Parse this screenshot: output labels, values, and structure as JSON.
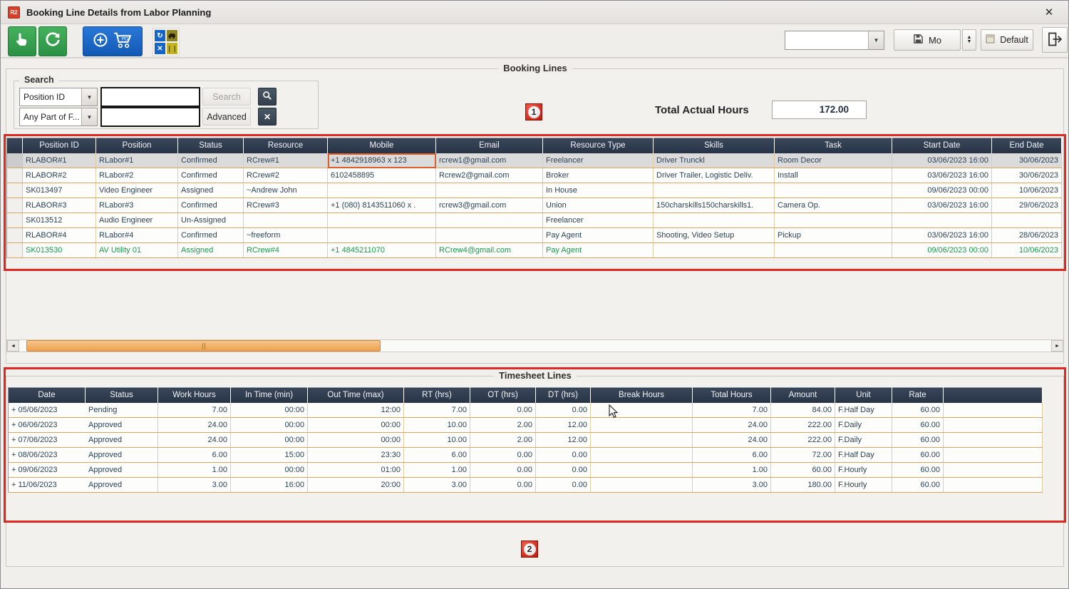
{
  "window": {
    "title": "Booking Line Details from Labor Planning",
    "app_icon_text": "R2"
  },
  "glyphs": {
    "close": "✕",
    "dropdown_arrow": "▼",
    "spinner_up": "▲",
    "spinner_down": "▼",
    "scroll_left": "◄",
    "scroll_right": "►",
    "clear": "✕",
    "excel_x": "✕",
    "pause_bars": "❘❘",
    "sync": "↻"
  },
  "toolbar": {
    "combo_value": "",
    "mo_button_label": "Mo",
    "default_button_label": "Default"
  },
  "booking": {
    "group_label": "Booking Lines",
    "annotation_badge": "1",
    "search": {
      "group_label": "Search",
      "field_combo_value": "Position ID",
      "match_combo_value": "Any Part of F...",
      "input_top": "",
      "input_bottom": "",
      "search_button_label": "Search",
      "advanced_button_label": "Advanced"
    },
    "total_hours_label": "Total Actual Hours",
    "total_hours_value": "172.00",
    "table": {
      "columns": [
        "Position ID",
        "Position",
        "Status",
        "Resource",
        "Mobile",
        "Email",
        "Resource Type",
        "Skills",
        "Task",
        "Start Date",
        "End Date"
      ],
      "rows": [
        {
          "selected": true,
          "outlined_cell": 4,
          "cells": [
            "RLABOR#1",
            "RLabor#1",
            "Confirmed",
            "RCrew#1",
            "+1 4842918963 x 123",
            "rcrew1@gmail.com",
            "Freelancer",
            "Driver Trunckl",
            "Room Decor",
            "03/06/2023 16:00",
            "30/06/2023"
          ]
        },
        {
          "cells": [
            "RLABOR#2",
            "RLabor#2",
            "Confirmed",
            "RCrew#2",
            "6102458895",
            "Rcrew2@gmail.com",
            "Broker",
            "Driver Trailer, Logistic Deliv.",
            "Install",
            "03/06/2023 16:00",
            "30/06/2023"
          ]
        },
        {
          "cells": [
            "SK013497",
            "Video Engineer",
            "Assigned",
            "~Andrew John",
            "",
            "",
            "In House",
            "",
            "",
            "09/06/2023 00:00",
            "10/06/2023"
          ]
        },
        {
          "cells": [
            "RLABOR#3",
            "RLabor#3",
            "Confirmed",
            "RCrew#3",
            "+1 (080) 8143511060 x .",
            "rcrew3@gmail.com",
            "Union",
            "150charskills150charskills1.",
            "Camera Op.",
            "03/06/2023 16:00",
            "29/06/2023"
          ]
        },
        {
          "cells": [
            "SK013512",
            "Audio Engineer",
            "Un-Assigned",
            "",
            "",
            "",
            "Freelancer",
            "",
            "",
            "",
            ""
          ]
        },
        {
          "cells": [
            "RLABOR#4",
            "RLabor#4",
            "Confirmed",
            "~freeform",
            "",
            "",
            "Pay Agent",
            "Shooting, Video Setup",
            "Pickup",
            "03/06/2023 16:00",
            "28/06/2023"
          ]
        },
        {
          "green": true,
          "cells": [
            "SK013530",
            "AV Utility 01",
            "Assigned",
            "RCrew#4",
            "+1 4845211070",
            "RCrew4@gmail.com",
            "Pay Agent",
            "",
            "",
            "09/06/2023 00:00",
            "10/06/2023"
          ]
        }
      ]
    }
  },
  "timesheet": {
    "group_label": "Timesheet Lines",
    "annotation_badge": "2",
    "table": {
      "columns": [
        "Date",
        "Status",
        "Work Hours",
        "In Time (min)",
        "Out Time (max)",
        "RT (hrs)",
        "OT (hrs)",
        "DT (hrs)",
        "Break Hours",
        "Total Hours",
        "Amount",
        "Unit",
        "Rate"
      ],
      "rows": [
        {
          "cells": [
            "+ 05/06/2023",
            "Pending",
            "7.00",
            "00:00",
            "12:00",
            "7.00",
            "0.00",
            "0.00",
            "",
            "7.00",
            "84.00",
            "F.Half Day",
            "60.00"
          ]
        },
        {
          "cells": [
            "+ 06/06/2023",
            "Approved",
            "24.00",
            "00:00",
            "00:00",
            "10.00",
            "2.00",
            "12.00",
            "",
            "24.00",
            "222.00",
            "F.Daily",
            "60.00"
          ]
        },
        {
          "cells": [
            "+ 07/06/2023",
            "Approved",
            "24.00",
            "00:00",
            "00:00",
            "10.00",
            "2.00",
            "12.00",
            "",
            "24.00",
            "222.00",
            "F.Daily",
            "60.00"
          ]
        },
        {
          "cells": [
            "+ 08/06/2023",
            "Approved",
            "6.00",
            "15:00",
            "23:30",
            "6.00",
            "0.00",
            "0.00",
            "",
            "6.00",
            "72.00",
            "F.Half Day",
            "60.00"
          ]
        },
        {
          "cells": [
            "+ 09/06/2023",
            "Approved",
            "1.00",
            "00:00",
            "01:00",
            "1.00",
            "0.00",
            "0.00",
            "",
            "1.00",
            "60.00",
            "F.Hourly",
            "60.00"
          ]
        },
        {
          "cells": [
            "+ 11/06/2023",
            "Approved",
            "3.00",
            "16:00",
            "20:00",
            "3.00",
            "0.00",
            "0.00",
            "",
            "3.00",
            "180.00",
            "F.Hourly",
            "60.00"
          ]
        }
      ]
    }
  },
  "colors": {
    "annotation_red": "#de2820",
    "table_header_bg": "#2d3a4d",
    "row_text": "#2d4356",
    "green_row_text": "#189a4a",
    "selected_row_bg": "#dbdbdb",
    "scroll_thumb": "#eda24f",
    "grid_horizontal": "#dca463",
    "grid_vertical": "#e0cda6",
    "toolbar_green": "#2b9144",
    "toolbar_blue": "#1159b4"
  }
}
